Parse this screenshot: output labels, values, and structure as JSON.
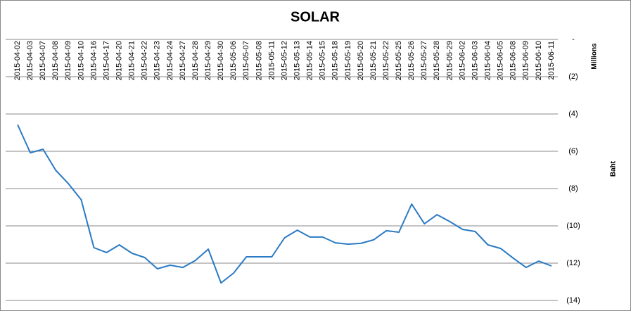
{
  "chart_data": {
    "type": "line",
    "title": "SOLAR",
    "y_axis_unit": "Millions",
    "y_axis_label": "Baht",
    "categories": [
      "2015-04-02",
      "2015-04-03",
      "2015-04-07",
      "2015-04-08",
      "2015-04-09",
      "2015-04-10",
      "2015-04-16",
      "2015-04-17",
      "2015-04-20",
      "2015-04-21",
      "2015-04-22",
      "2015-04-23",
      "2015-04-24",
      "2015-04-27",
      "2015-04-28",
      "2015-04-29",
      "2015-04-30",
      "2015-05-06",
      "2015-05-07",
      "2015-05-08",
      "2015-05-11",
      "2015-05-12",
      "2015-05-13",
      "2015-05-14",
      "2015-05-15",
      "2015-05-18",
      "2015-05-19",
      "2015-05-20",
      "2015-05-21",
      "2015-05-22",
      "2015-05-25",
      "2015-05-26",
      "2015-05-27",
      "2015-05-28",
      "2015-05-29",
      "2015-06-02",
      "2015-06-03",
      "2015-06-04",
      "2015-06-05",
      "2015-06-08",
      "2015-06-09",
      "2015-06-10",
      "2015-06-11"
    ],
    "values": [
      -4.57,
      -6.08,
      -5.89,
      -7.02,
      -7.74,
      -8.6,
      -11.17,
      -11.43,
      -11.02,
      -11.47,
      -11.7,
      -12.3,
      -12.11,
      -12.23,
      -11.85,
      -11.25,
      -13.06,
      -12.53,
      -11.66,
      -11.66,
      -11.66,
      -10.64,
      -10.23,
      -10.6,
      -10.6,
      -10.91,
      -10.98,
      -10.94,
      -10.75,
      -10.26,
      -10.34,
      -8.83,
      -9.89,
      -9.4,
      -9.77,
      -10.19,
      -10.3,
      -11.02,
      -11.21,
      -11.74,
      -12.23,
      -11.89,
      -12.15
    ],
    "color": "#2a7ac4",
    "ylim": [
      0,
      -14
    ],
    "yticks": [
      {
        "value": 0,
        "label": "-"
      },
      {
        "value": -2,
        "label": "(2)"
      },
      {
        "value": -4,
        "label": "(4)"
      },
      {
        "value": -6,
        "label": "(6)"
      },
      {
        "value": -8,
        "label": "(8)"
      },
      {
        "value": -10,
        "label": "(10)"
      },
      {
        "value": -12,
        "label": "(12)"
      },
      {
        "value": -14,
        "label": "(14)"
      }
    ],
    "grid": true
  }
}
